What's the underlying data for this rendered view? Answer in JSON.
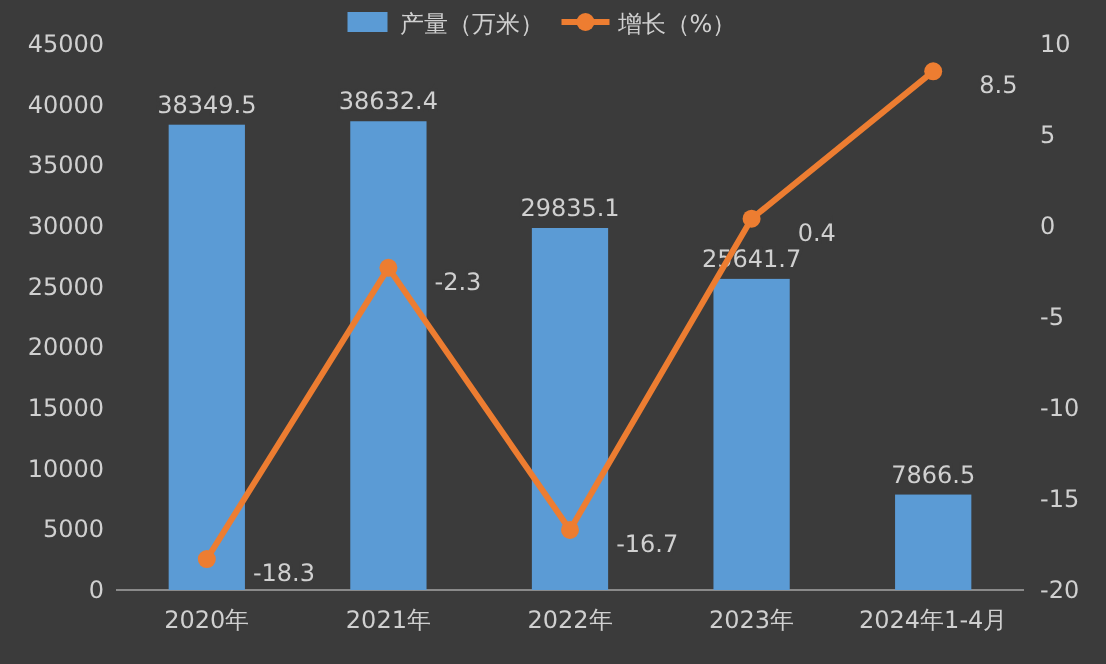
{
  "chart_data": {
    "type": "bar",
    "categories": [
      "2020年",
      "2021年",
      "2022年",
      "2023年",
      "2024年1-4月"
    ],
    "series": [
      {
        "name": "产量（万米）",
        "color": "#5b9bd5",
        "values": [
          38349.5,
          38632.4,
          29835.1,
          25641.7,
          7866.5
        ]
      },
      {
        "name": "增长（%）",
        "type": "line",
        "axis": "y2",
        "color": "#ed7d31",
        "values": [
          -18.3,
          -2.3,
          -16.7,
          0.4,
          8.5
        ]
      }
    ],
    "ylim": [
      0,
      45000
    ],
    "yticks": [
      0,
      5000,
      10000,
      15000,
      20000,
      25000,
      30000,
      35000,
      40000,
      45000
    ],
    "y2lim": [
      -20,
      10
    ],
    "y2ticks": [
      -20,
      -15,
      -10,
      -5,
      0,
      5,
      10
    ],
    "legend": "top",
    "data_labels": true,
    "marker": "circle"
  }
}
